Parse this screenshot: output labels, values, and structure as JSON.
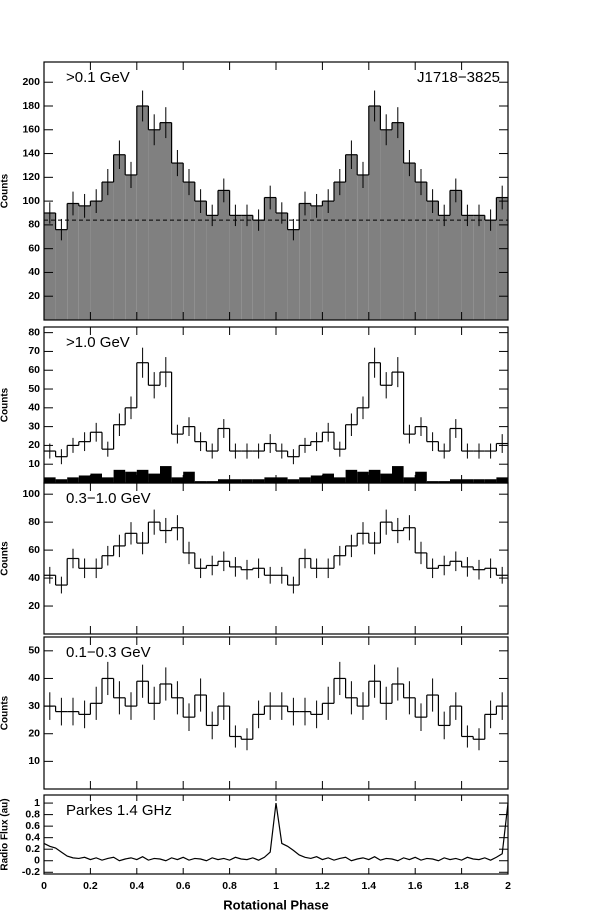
{
  "chart_data": [
    {
      "type": "histogram",
      "ylabel": "Counts",
      "annotations": [
        {
          "text": ">0.1 GeV",
          "position": "top-left"
        },
        {
          "text": "J1718−3825",
          "position": "top-right"
        }
      ],
      "bins": [
        0,
        0.05,
        0.1,
        0.15,
        0.2,
        0.25,
        0.3,
        0.35,
        0.4,
        0.45,
        0.5,
        0.55,
        0.6,
        0.65,
        0.7,
        0.75,
        0.8,
        0.85,
        0.9,
        0.95,
        1,
        1.05,
        1.1,
        1.15,
        1.2,
        1.25,
        1.3,
        1.35,
        1.4,
        1.45,
        1.5,
        1.55,
        1.6,
        1.65,
        1.7,
        1.75,
        1.8,
        1.85,
        1.9,
        1.95,
        2
      ],
      "series": [
        {
          "color": "#000000",
          "fill": "#808080",
          "values": [
            90,
            76,
            98,
            96,
            100,
            116,
            139,
            122,
            180,
            160,
            166,
            132,
            116,
            100,
            88,
            109,
            88,
            88,
            84,
            103,
            90,
            76,
            98,
            96,
            100,
            116,
            139,
            122,
            180,
            160,
            166,
            132,
            116,
            100,
            88,
            109,
            88,
            88,
            84,
            103
          ],
          "errors": [
            9,
            9,
            10,
            10,
            10,
            11,
            12,
            11,
            13,
            13,
            13,
            11,
            11,
            10,
            9,
            10,
            9,
            9,
            9,
            10,
            9,
            9,
            10,
            10,
            10,
            11,
            12,
            11,
            13,
            13,
            13,
            11,
            11,
            10,
            9,
            10,
            9,
            9,
            9,
            10
          ]
        }
      ],
      "hline": 84,
      "xlim": [
        0,
        2
      ],
      "xticks": [
        0,
        0.2,
        0.4,
        0.6,
        0.8,
        1,
        1.2,
        1.4,
        1.6,
        1.8,
        2
      ],
      "ylim": [
        0,
        217
      ],
      "yticks": [
        20,
        40,
        60,
        80,
        100,
        120,
        140,
        160,
        180,
        200
      ]
    },
    {
      "type": "histogram",
      "ylabel": "Counts",
      "annotations": [
        {
          "text": ">1.0 GeV",
          "position": "top-left"
        }
      ],
      "bins": [
        0,
        0.05,
        0.1,
        0.15,
        0.2,
        0.25,
        0.3,
        0.35,
        0.4,
        0.45,
        0.5,
        0.55,
        0.6,
        0.65,
        0.7,
        0.75,
        0.8,
        0.85,
        0.9,
        0.95,
        1,
        1.05,
        1.1,
        1.15,
        1.2,
        1.25,
        1.3,
        1.35,
        1.4,
        1.45,
        1.5,
        1.55,
        1.6,
        1.65,
        1.7,
        1.75,
        1.8,
        1.85,
        1.9,
        1.95,
        2
      ],
      "series": [
        {
          "color": "#000000",
          "values": [
            17,
            14,
            20,
            22,
            27,
            18,
            31,
            40,
            64,
            52,
            59,
            26,
            30,
            22,
            17,
            29,
            17,
            17,
            17,
            21,
            17,
            14,
            20,
            22,
            27,
            18,
            31,
            40,
            64,
            52,
            59,
            26,
            30,
            22,
            17,
            29,
            17,
            17,
            17,
            21
          ],
          "errors": [
            4,
            4,
            4,
            5,
            5,
            4,
            6,
            6,
            8,
            7,
            8,
            5,
            5,
            5,
            4,
            5,
            4,
            4,
            4,
            5,
            4,
            4,
            4,
            5,
            5,
            4,
            6,
            6,
            8,
            7,
            8,
            5,
            5,
            5,
            4,
            5,
            4,
            4,
            4,
            5
          ]
        },
        {
          "color": "#000000",
          "fill": "#000000",
          "values": [
            3,
            2,
            3,
            4,
            5,
            3,
            7,
            6,
            7,
            5,
            9,
            3,
            6,
            1,
            1,
            2,
            2,
            2,
            2,
            3,
            3,
            2,
            3,
            4,
            5,
            3,
            7,
            6,
            7,
            5,
            9,
            3,
            6,
            1,
            1,
            2,
            2,
            2,
            2,
            3
          ]
        }
      ],
      "xlim": [
        0,
        2
      ],
      "xticks": [
        0,
        0.2,
        0.4,
        0.6,
        0.8,
        1,
        1.2,
        1.4,
        1.6,
        1.8,
        2
      ],
      "ylim": [
        0,
        83
      ],
      "yticks": [
        10,
        20,
        30,
        40,
        50,
        60,
        70,
        80
      ]
    },
    {
      "type": "histogram",
      "ylabel": "Counts",
      "annotations": [
        {
          "text": "0.3−1.0 GeV",
          "position": "top-left"
        }
      ],
      "bins": [
        0,
        0.05,
        0.1,
        0.15,
        0.2,
        0.25,
        0.3,
        0.35,
        0.4,
        0.45,
        0.5,
        0.55,
        0.6,
        0.65,
        0.7,
        0.75,
        0.8,
        0.85,
        0.9,
        0.95,
        1,
        1.05,
        1.1,
        1.15,
        1.2,
        1.25,
        1.3,
        1.35,
        1.4,
        1.45,
        1.5,
        1.55,
        1.6,
        1.65,
        1.7,
        1.75,
        1.8,
        1.85,
        1.9,
        1.95,
        2
      ],
      "series": [
        {
          "color": "#000000",
          "values": [
            42,
            35,
            54,
            47,
            47,
            56,
            63,
            72,
            65,
            80,
            74,
            76,
            58,
            47,
            49,
            52,
            48,
            46,
            47,
            42,
            42,
            35,
            54,
            47,
            47,
            56,
            63,
            72,
            65,
            80,
            74,
            76,
            58,
            47,
            49,
            52,
            48,
            46,
            47,
            42
          ],
          "errors": [
            6,
            6,
            7,
            7,
            7,
            7,
            8,
            8,
            8,
            9,
            9,
            9,
            8,
            7,
            7,
            7,
            7,
            7,
            7,
            6,
            6,
            6,
            7,
            7,
            7,
            7,
            8,
            8,
            8,
            9,
            9,
            9,
            8,
            7,
            7,
            7,
            7,
            7,
            7,
            6
          ]
        }
      ],
      "xlim": [
        0,
        2
      ],
      "xticks": [
        0,
        0.2,
        0.4,
        0.6,
        0.8,
        1,
        1.2,
        1.4,
        1.6,
        1.8,
        2
      ],
      "ylim": [
        0,
        108
      ],
      "yticks": [
        20,
        40,
        60,
        80,
        100
      ]
    },
    {
      "type": "histogram",
      "ylabel": "Counts",
      "annotations": [
        {
          "text": "0.1−0.3 GeV",
          "position": "top-left"
        }
      ],
      "bins": [
        0,
        0.05,
        0.1,
        0.15,
        0.2,
        0.25,
        0.3,
        0.35,
        0.4,
        0.45,
        0.5,
        0.55,
        0.6,
        0.65,
        0.7,
        0.75,
        0.8,
        0.85,
        0.9,
        0.95,
        1,
        1.05,
        1.1,
        1.15,
        1.2,
        1.25,
        1.3,
        1.35,
        1.4,
        1.45,
        1.5,
        1.55,
        1.6,
        1.65,
        1.7,
        1.75,
        1.8,
        1.85,
        1.9,
        1.95,
        2
      ],
      "series": [
        {
          "color": "#000000",
          "values": [
            30,
            28,
            28,
            27,
            31,
            40,
            33,
            30,
            39,
            31,
            38,
            33,
            26,
            34,
            23,
            30,
            19,
            18,
            27,
            30,
            30,
            28,
            28,
            27,
            31,
            40,
            33,
            30,
            39,
            31,
            38,
            33,
            26,
            34,
            23,
            30,
            19,
            18,
            27,
            30
          ],
          "errors": [
            5,
            5,
            5,
            5,
            6,
            6,
            6,
            5,
            6,
            6,
            6,
            6,
            5,
            6,
            5,
            5,
            4,
            4,
            5,
            5,
            5,
            5,
            5,
            5,
            6,
            6,
            6,
            5,
            6,
            6,
            6,
            6,
            5,
            6,
            5,
            5,
            4,
            4,
            5,
            5
          ]
        }
      ],
      "xlim": [
        0,
        2
      ],
      "xticks": [
        0,
        0.2,
        0.4,
        0.6,
        0.8,
        1,
        1.2,
        1.4,
        1.6,
        1.8,
        2
      ],
      "ylim": [
        0,
        55
      ],
      "yticks": [
        10,
        20,
        30,
        40,
        50
      ]
    },
    {
      "type": "line",
      "ylabel": "Radio Flux (au)",
      "xlabel": "Rotational Phase",
      "annotations": [
        {
          "text": "Parkes 1.4 GHz",
          "position": "top-left"
        }
      ],
      "x": [
        0,
        0.025,
        0.05,
        0.075,
        0.1,
        0.125,
        0.15,
        0.175,
        0.2,
        0.225,
        0.25,
        0.275,
        0.3,
        0.325,
        0.35,
        0.375,
        0.4,
        0.425,
        0.45,
        0.475,
        0.5,
        0.525,
        0.55,
        0.575,
        0.6,
        0.625,
        0.65,
        0.675,
        0.7,
        0.725,
        0.75,
        0.775,
        0.8,
        0.825,
        0.85,
        0.875,
        0.9,
        0.925,
        0.95,
        0.975,
        1,
        1.025,
        1.05,
        1.075,
        1.1,
        1.125,
        1.15,
        1.175,
        1.2,
        1.225,
        1.25,
        1.275,
        1.3,
        1.325,
        1.35,
        1.375,
        1.4,
        1.425,
        1.45,
        1.475,
        1.5,
        1.525,
        1.55,
        1.575,
        1.6,
        1.625,
        1.65,
        1.675,
        1.7,
        1.725,
        1.75,
        1.775,
        1.8,
        1.825,
        1.85,
        1.875,
        1.9,
        1.925,
        1.95,
        1.975,
        2
      ],
      "series": [
        {
          "color": "#000000",
          "values": [
            0.3,
            0.25,
            0.22,
            0.15,
            0.08,
            0.05,
            0.04,
            0.06,
            0.02,
            0.05,
            0.01,
            0.04,
            0.06,
            0.0,
            0.03,
            0.05,
            0.02,
            0.07,
            0.01,
            0.04,
            0.03,
            0.0,
            0.05,
            0.02,
            0.06,
            0.01,
            0.04,
            0.03,
            0.0,
            0.05,
            0.02,
            0.04,
            0.01,
            0.06,
            0.03,
            0.02,
            0.05,
            0.01,
            0.06,
            0.15,
            1.0,
            0.3,
            0.25,
            0.18,
            0.1,
            0.06,
            0.04,
            0.07,
            0.02,
            0.05,
            0.01,
            0.04,
            0.06,
            0.0,
            0.03,
            0.05,
            0.02,
            0.07,
            0.01,
            0.04,
            0.03,
            0.0,
            0.05,
            0.02,
            0.06,
            0.01,
            0.04,
            0.03,
            0.0,
            0.05,
            0.02,
            0.04,
            0.01,
            0.06,
            0.03,
            0.02,
            0.05,
            0.01,
            0.06,
            0.12,
            1.0
          ]
        }
      ],
      "xlim": [
        0,
        2
      ],
      "xticks": [
        0,
        0.2,
        0.4,
        0.6,
        0.8,
        1,
        1.2,
        1.4,
        1.6,
        1.8,
        2
      ],
      "ylim": [
        -0.23,
        1.14
      ],
      "yticks": [
        -0.2,
        0,
        0.2,
        0.4,
        0.6,
        0.8,
        1
      ]
    }
  ]
}
